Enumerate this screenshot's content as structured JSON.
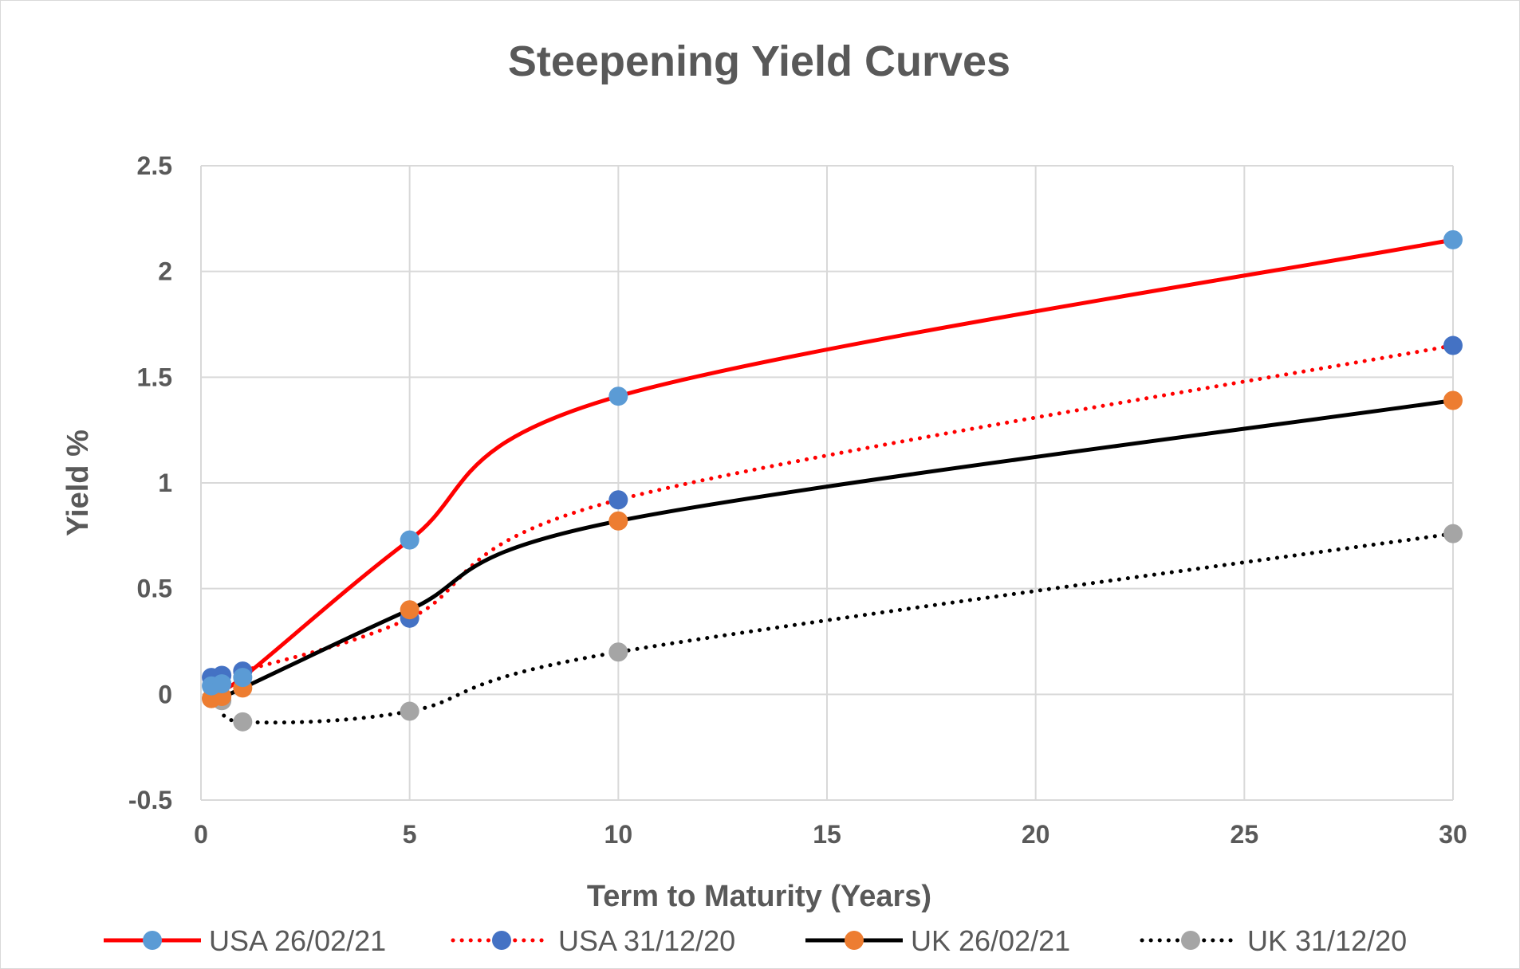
{
  "chart_data": {
    "type": "line",
    "title": "Steepening Yield Curves",
    "xlabel": "Term to Maturity (Years)",
    "ylabel": "Yield %",
    "xlim": [
      0,
      30
    ],
    "ylim": [
      -0.5,
      2.5
    ],
    "x_ticks": [
      "0",
      "5",
      "10",
      "15",
      "20",
      "25",
      "30"
    ],
    "y_ticks": [
      "2.5",
      "2",
      "1.5",
      "1",
      "0.5",
      "0",
      "-0.5"
    ],
    "grid": true,
    "legend_position": "bottom",
    "series": [
      {
        "name": "USA 26/02/21",
        "line_color": "#ff0000",
        "line_style": "solid",
        "marker_color": "#5b9bd5",
        "x": [
          0.25,
          0.5,
          1,
          5,
          10,
          30
        ],
        "y": [
          0.04,
          0.05,
          0.08,
          0.73,
          1.41,
          2.15
        ]
      },
      {
        "name": "USA 31/12/20",
        "line_color": "#ff0000",
        "line_style": "dotted",
        "marker_color": "#4472c4",
        "x": [
          0.25,
          0.5,
          1,
          5,
          10,
          30
        ],
        "y": [
          0.08,
          0.09,
          0.11,
          0.36,
          0.92,
          1.65
        ]
      },
      {
        "name": "UK 26/02/21",
        "line_color": "#000000",
        "line_style": "solid",
        "marker_color": "#ed7d31",
        "x": [
          0.25,
          0.5,
          1,
          5,
          10,
          30
        ],
        "y": [
          -0.02,
          -0.01,
          0.03,
          0.4,
          0.82,
          1.39
        ]
      },
      {
        "name": "UK 31/12/20",
        "line_color": "#000000",
        "line_style": "dotted",
        "marker_color": "#a5a5a5",
        "x": [
          0.25,
          0.5,
          1,
          5,
          10,
          30
        ],
        "y": [
          -0.02,
          -0.03,
          -0.13,
          -0.08,
          0.2,
          0.76
        ]
      }
    ]
  }
}
